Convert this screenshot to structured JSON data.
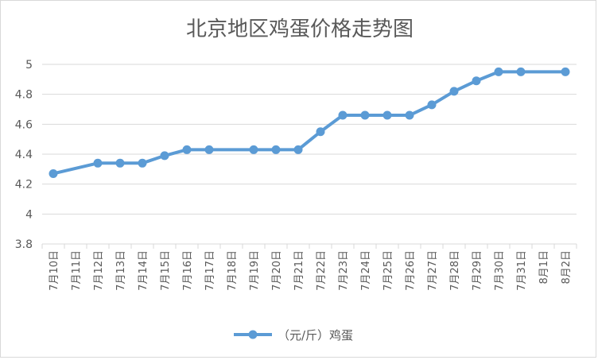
{
  "chart_data": {
    "type": "line",
    "title": "北京地区鸡蛋价格走势图",
    "categories": [
      "7月10日",
      "7月11日",
      "7月12日",
      "7月13日",
      "7月14日",
      "7月15日",
      "7月16日",
      "7月17日",
      "7月18日",
      "7月19日",
      "7月20日",
      "7月21日",
      "7月22日",
      "7月23日",
      "7月24日",
      "7月25日",
      "7月26日",
      "7月27日",
      "7月28日",
      "7月29日",
      "7月30日",
      "7月31日",
      "8月1日",
      "8月2日"
    ],
    "series": [
      {
        "name": "（元/斤）鸡蛋",
        "values": [
          4.27,
          null,
          4.34,
          4.34,
          4.34,
          4.39,
          4.43,
          4.43,
          null,
          4.43,
          4.43,
          4.43,
          4.55,
          4.66,
          4.66,
          4.66,
          4.66,
          4.73,
          4.82,
          4.89,
          4.95,
          4.95,
          null,
          4.95
        ]
      }
    ],
    "ylim": [
      3.8,
      5.0
    ],
    "yticks": [
      "3.8",
      "4",
      "4.2",
      "4.4",
      "4.6",
      "4.8",
      "5"
    ],
    "grid": true,
    "legend": "bottom",
    "colors": {
      "line": "#5b9bd5",
      "grid": "#d9d9d9",
      "text": "#595959"
    }
  }
}
